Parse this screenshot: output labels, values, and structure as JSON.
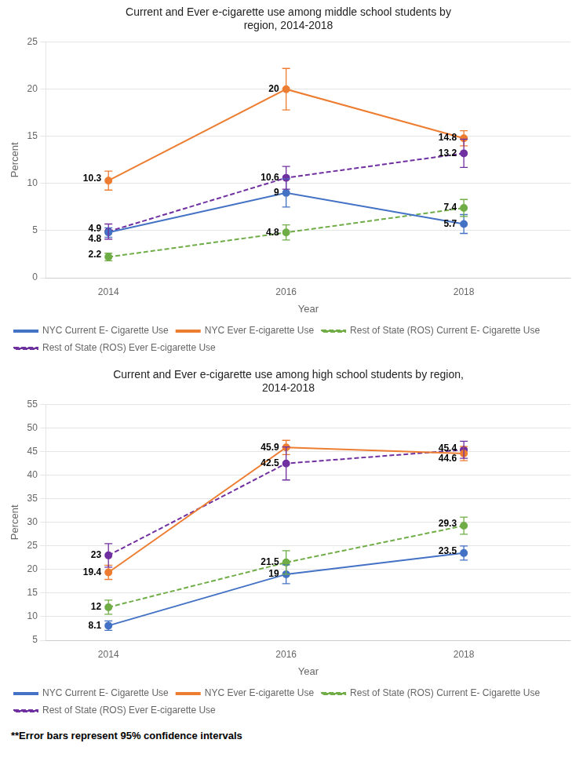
{
  "chart_data": [
    {
      "type": "line",
      "title": "Current and Ever e-cigarette use among middle school students by\nregion, 2014-2018",
      "x_label": "Year",
      "y_label": "Percent",
      "x": [
        2014,
        2016,
        2018
      ],
      "xlim": [
        2013.3,
        2019.2
      ],
      "xticks": [
        2014,
        2016,
        2018
      ],
      "ylim": [
        0,
        25
      ],
      "yticks": [
        0,
        5,
        10,
        15,
        20,
        25
      ],
      "grid": "y",
      "legend": "bottom",
      "data_labels": true,
      "series": [
        {
          "name": "NYC Current E- Cigarette Use",
          "color": "#4472C4",
          "marker": "circle",
          "line_style": "solid",
          "values": [
            4.8,
            9.0,
            5.7
          ],
          "errors": [
            0.5,
            1.5,
            1.0
          ]
        },
        {
          "name": "NYC Ever E-cigarette Use",
          "color": "#ED7D31",
          "marker": "circle",
          "line_style": "solid",
          "values": [
            10.3,
            20.0,
            14.8
          ],
          "errors": [
            1.0,
            2.2,
            0.8
          ]
        },
        {
          "name": "Rest of State (ROS) Current E- Cigarette Use",
          "color": "#70AD47",
          "marker": "circle",
          "line_style": "dashed",
          "values": [
            2.2,
            4.8,
            7.4
          ],
          "errors": [
            0.4,
            0.8,
            0.9
          ]
        },
        {
          "name": "Rest of State (ROS) Ever E-cigarette Use",
          "color": "#7030A0",
          "marker": "circle",
          "line_style": "dashed",
          "values": [
            4.9,
            10.6,
            13.2
          ],
          "errors": [
            0.8,
            1.2,
            1.5
          ]
        }
      ]
    },
    {
      "type": "line",
      "title": "Current and Ever e-cigarette use among high school students by region,\n2014-2018",
      "x_label": "Year",
      "y_label": "Percent",
      "x": [
        2014,
        2016,
        2018
      ],
      "xlim": [
        2013.3,
        2019.2
      ],
      "xticks": [
        2014,
        2016,
        2018
      ],
      "ylim": [
        5,
        55
      ],
      "yticks": [
        5,
        10,
        15,
        20,
        25,
        30,
        35,
        40,
        45,
        50,
        55
      ],
      "grid": "y",
      "legend": "bottom",
      "data_labels": true,
      "annotations": [
        "**Error bars represent 95% confidence intervals"
      ],
      "series": [
        {
          "name": "NYC Current E- Cigarette Use",
          "color": "#4472C4",
          "marker": "circle",
          "line_style": "solid",
          "values": [
            8.1,
            19.0,
            23.5
          ],
          "errors": [
            1.0,
            2.0,
            1.5
          ]
        },
        {
          "name": "NYC Ever E-cigarette Use",
          "color": "#ED7D31",
          "marker": "circle",
          "line_style": "solid",
          "values": [
            19.4,
            45.9,
            44.6
          ],
          "errors": [
            1.5,
            1.5,
            1.5
          ]
        },
        {
          "name": "Rest of State (ROS) Current E- Cigarette Use",
          "color": "#70AD47",
          "marker": "circle",
          "line_style": "dashed",
          "values": [
            12.0,
            21.5,
            29.3
          ],
          "errors": [
            1.5,
            2.5,
            1.8
          ]
        },
        {
          "name": "Rest of State (ROS) Ever E-cigarette Use",
          "color": "#7030A0",
          "marker": "circle",
          "line_style": "dashed",
          "values": [
            23.0,
            42.5,
            45.4
          ],
          "errors": [
            2.5,
            3.5,
            1.8
          ]
        }
      ]
    }
  ]
}
